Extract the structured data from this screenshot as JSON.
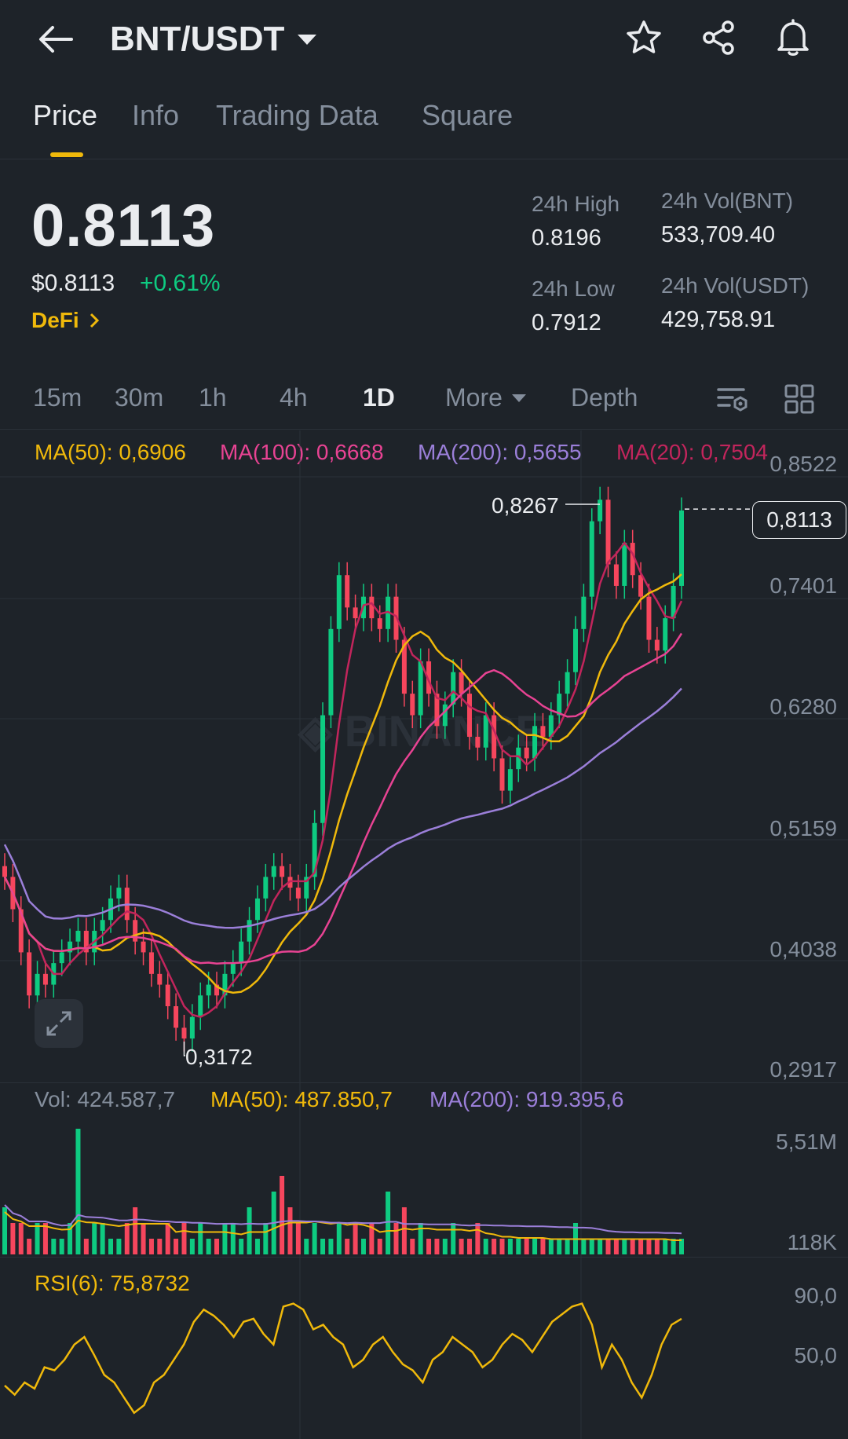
{
  "header": {
    "pair": "BNT/USDT",
    "icons": [
      "back-arrow-icon",
      "caret-down-icon",
      "star-icon",
      "share-icon",
      "bell-icon"
    ]
  },
  "tabs": [
    {
      "label": "Price",
      "active": true
    },
    {
      "label": "Info",
      "active": false
    },
    {
      "label": "Trading Data",
      "active": false
    },
    {
      "label": "Square",
      "active": false
    }
  ],
  "price": {
    "last": "0.8113",
    "usd": "$0.8113",
    "change": "+0.61%",
    "tag": "DeFi"
  },
  "stats": {
    "high_label": "24h High",
    "high_value": "0.8196",
    "low_label": "24h Low",
    "low_value": "0.7912",
    "vol_base_label": "24h Vol(BNT)",
    "vol_base_value": "533,709.40",
    "vol_quote_label": "24h Vol(USDT)",
    "vol_quote_value": "429,758.91"
  },
  "intervals": [
    {
      "label": "15m",
      "active": false
    },
    {
      "label": "30m",
      "active": false
    },
    {
      "label": "1h",
      "active": false
    },
    {
      "label": "4h",
      "active": false
    },
    {
      "label": "1D",
      "active": true
    },
    {
      "label": "More",
      "active": false
    },
    {
      "label": "Depth",
      "active": false
    }
  ],
  "ma_legend": {
    "ma50": "MA(50): 0,6906",
    "ma100": "MA(100): 0,6668",
    "ma200": "MA(200): 0,5655",
    "ma20": "MA(20): 0,7504"
  },
  "price_axis": [
    "0,8522",
    "0,7401",
    "0,6280",
    "0,5159",
    "0,4038",
    "0,2917"
  ],
  "annotations": {
    "high": "0,8267",
    "low": "0,3172",
    "current": "0,8113"
  },
  "volume": {
    "vol": "Vol: 424.587,7",
    "ma50": "MA(50): 487.850,7",
    "ma200": "MA(200): 919.395,6",
    "axis_top": "5,51M",
    "axis_bottom": "118K"
  },
  "rsi": {
    "label": "RSI(6): 75,8732",
    "axis_top": "90,0",
    "axis_mid": "50,0"
  },
  "colors": {
    "up": "#0ecb81",
    "down": "#f6465d",
    "ma50": "#f0b90b",
    "ma100": "#e84393",
    "ma200": "#9b7fd9",
    "ma20": "#c2255c",
    "accent": "#f0b90b",
    "bg": "#1e2329"
  },
  "chart_data": {
    "type": "candlestick",
    "title": "",
    "y_range": [
      0.2917,
      0.8522
    ],
    "high": 0.8267,
    "low": 0.3172,
    "last": 0.8113,
    "ma_last": {
      "ma20": 0.7504,
      "ma50": 0.6906,
      "ma100": 0.6668,
      "ma200": 0.5655
    },
    "close_series": [
      0.47,
      0.44,
      0.4,
      0.36,
      0.38,
      0.37,
      0.39,
      0.4,
      0.41,
      0.42,
      0.4,
      0.42,
      0.43,
      0.45,
      0.46,
      0.43,
      0.41,
      0.4,
      0.38,
      0.37,
      0.35,
      0.33,
      0.32,
      0.34,
      0.36,
      0.37,
      0.36,
      0.38,
      0.39,
      0.41,
      0.43,
      0.45,
      0.47,
      0.48,
      0.47,
      0.46,
      0.45,
      0.47,
      0.52,
      0.62,
      0.7,
      0.75,
      0.72,
      0.71,
      0.73,
      0.71,
      0.7,
      0.73,
      0.69,
      0.64,
      0.62,
      0.67,
      0.64,
      0.61,
      0.63,
      0.66,
      0.64,
      0.6,
      0.59,
      0.62,
      0.58,
      0.55,
      0.57,
      0.59,
      0.58,
      0.61,
      0.6,
      0.62,
      0.64,
      0.66,
      0.7,
      0.73,
      0.8,
      0.82,
      0.76,
      0.74,
      0.78,
      0.75,
      0.73,
      0.69,
      0.68,
      0.71,
      0.74,
      0.81
    ],
    "rsi_series": [
      28,
      22,
      30,
      26,
      40,
      38,
      45,
      55,
      60,
      48,
      35,
      30,
      20,
      10,
      15,
      30,
      35,
      45,
      55,
      70,
      78,
      74,
      68,
      60,
      70,
      72,
      62,
      55,
      80,
      82,
      78,
      65,
      68,
      60,
      55,
      40,
      45,
      55,
      60,
      50,
      42,
      38,
      30,
      45,
      50,
      60,
      55,
      50,
      40,
      45,
      55,
      62,
      58,
      50,
      60,
      70,
      75,
      80,
      82,
      68,
      40,
      55,
      45,
      30,
      20,
      35,
      55,
      68,
      72
    ],
    "volume_series": [
      3,
      2,
      2,
      1,
      2,
      2,
      1,
      1,
      2,
      8,
      1,
      2,
      2,
      1,
      1,
      2,
      3,
      2,
      1,
      1,
      2,
      1,
      2,
      1,
      2,
      1,
      1,
      2,
      2,
      1,
      3,
      1,
      2,
      4,
      5,
      3,
      2,
      1,
      2,
      1,
      1,
      2,
      1,
      2,
      1,
      2,
      1,
      4,
      2,
      3,
      1,
      2,
      1,
      1,
      1,
      2,
      1,
      1,
      2,
      1,
      1,
      1,
      1,
      1,
      1,
      1,
      1,
      1,
      1,
      1,
      2,
      1,
      1,
      1,
      1,
      1,
      1,
      1,
      1,
      1,
      1,
      1,
      1,
      1
    ]
  }
}
